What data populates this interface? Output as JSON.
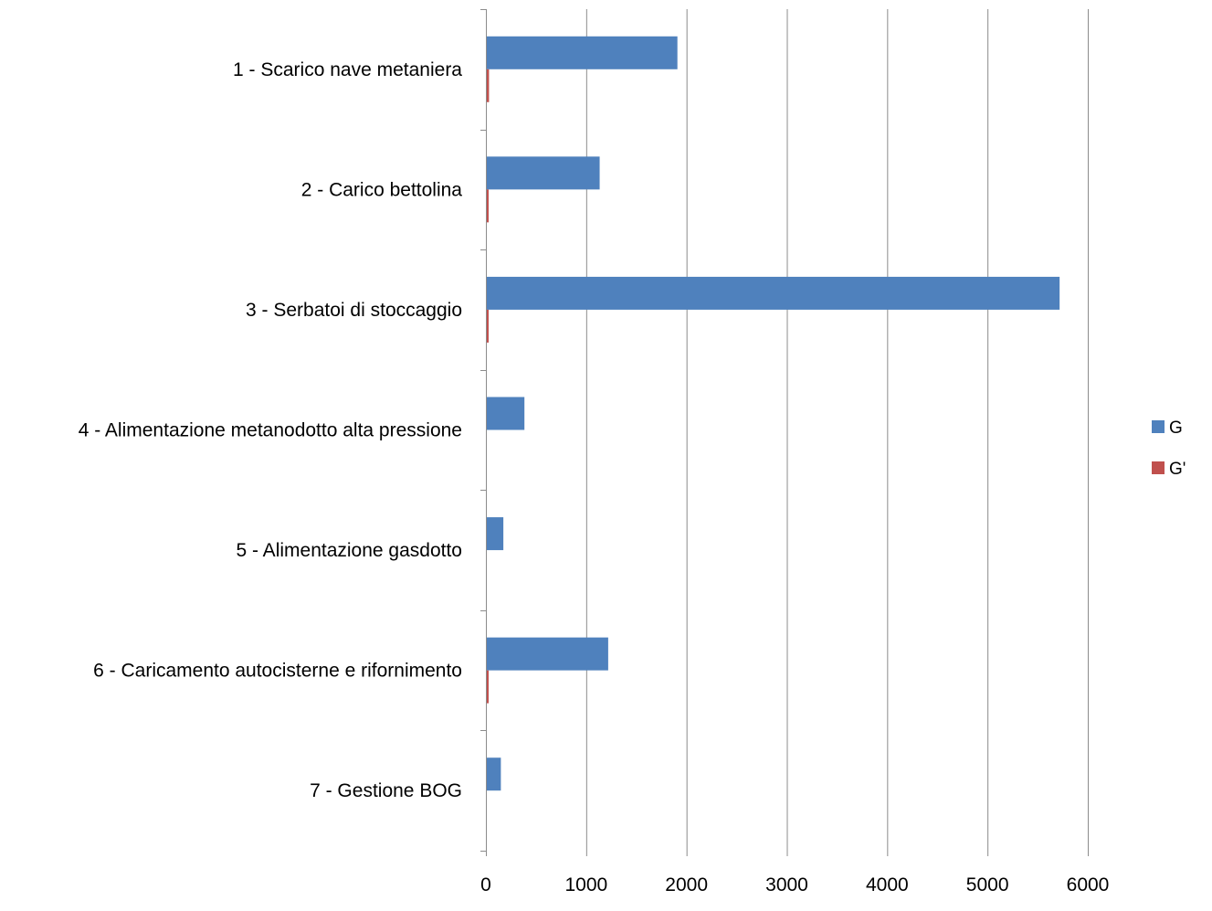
{
  "chart_data": {
    "type": "bar",
    "orientation": "horizontal",
    "categories": [
      "1 - Scarico nave metaniera",
      "2 - Carico bettolina",
      "3 - Serbatoi di stoccaggio",
      "4 - Alimentazione metanodotto alta pressione",
      "5 - Alimentazione gasdotto",
      "6 - Caricamento autocisterne e rifornimento",
      "7 - Gestione BOG"
    ],
    "series": [
      {
        "name": "G",
        "color": "#4F81BD",
        "values": [
          1900,
          1125,
          5710,
          375,
          165,
          1210,
          140
        ]
      },
      {
        "name": "G'",
        "color": "#C0504D",
        "values": [
          22,
          12,
          10,
          0,
          0,
          5,
          0
        ]
      }
    ],
    "xlim": [
      0,
      6000
    ],
    "xticks": [
      0,
      1000,
      2000,
      3000,
      4000,
      5000,
      6000
    ],
    "xtick_labels": [
      "0",
      "1000",
      "2000",
      "3000",
      "4000",
      "5000",
      "6000"
    ],
    "grid": true,
    "legend_position": "right"
  }
}
